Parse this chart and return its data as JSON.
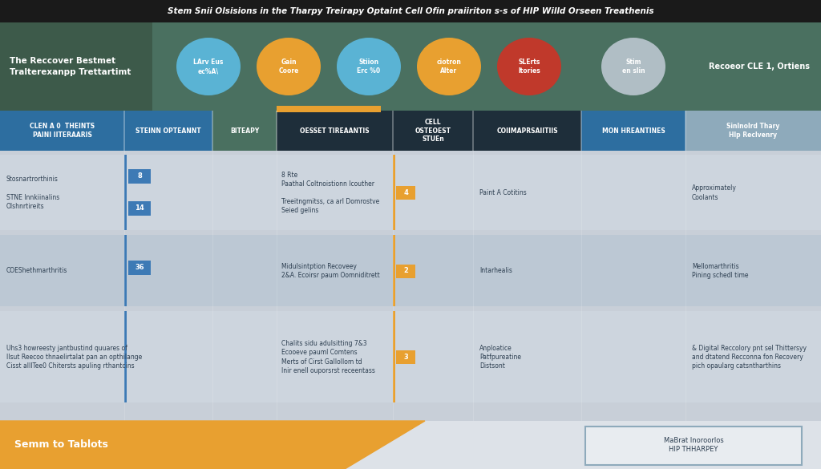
{
  "title": "Stem Snii Olsisions in the Tharpy Treirapy Optaint Cell Ofin praiiriton s-s of HIP Willd Orseen Treathenis",
  "subtitle_left": "The Reccover Bestmet\nTralterexanpp Trettartimt",
  "subtitle_right": "Recoeor CLE 1, Ortiens",
  "bg_color": "#c8cfd8",
  "header_bg_left": "#3d5a4a",
  "header_bg_right": "#4a7060",
  "title_bg": "#1a1a1a",
  "circles": [
    {
      "label": "LArv Eus\nec%A\\",
      "color": "#5ab3d4"
    },
    {
      "label": "Gain\nCoore",
      "color": "#e8a030"
    },
    {
      "label": "Stiion\nErc %0",
      "color": "#5ab3d4"
    },
    {
      "label": "ciotron\nAlter",
      "color": "#e8a030"
    },
    {
      "label": "SLErts\nltories",
      "color": "#c0392b"
    },
    {
      "label": "Stim\nen slin",
      "color": "#b0bec5"
    }
  ],
  "col_headers": [
    "CLEN A 0  THEINTS\nPAINI IITERAARIS",
    "STEINN OPTEANNT",
    "BITEAPY",
    "OESSET TIREAANTIS",
    "CELL\nOSTEOEST\nSTUEn",
    "COIIMAPRSAIITIIS",
    "MON HREANTINES"
  ],
  "col_header_colors": [
    "#2d6ea0",
    "#2d6ea0",
    "#4a7060",
    "#1e2e3a",
    "#1e2e3a",
    "#1e2e3a",
    "#2d6ea0"
  ],
  "extra_col": "Sinlnolrd Thary\nHlp Reclvenry",
  "extra_col_bg": "#8eaabb",
  "rows": [
    {
      "cells": [
        "Stosnartrorthinis\n\nSTNE Innkiinalins\nOlshnrtireits",
        "8\n\n14",
        "",
        "8 Rte\nPaathal Coltnoistionn lcouther\n\nTreeitngmitss, ca arl Domrostve\nSeied gelins",
        "4",
        "Paint A Cotitins",
        "",
        "Approximately\nCoolants"
      ],
      "bg": "#cdd5de"
    },
    {
      "cells": [
        "COEShethmarthritis",
        "36",
        "",
        "Midulsintption Recoveey\n2&A. Ecoirsr paum Oomniditrett",
        "2",
        "Intarhealis",
        "",
        "Mellomarthritis\nPining schedl time"
      ],
      "bg": "#bcc8d4"
    },
    {
      "cells": [
        "Uhs3 howreesty jantbustind quuares of\nlIsut Reecoo thnaelirtalat pan an opthilange\nCisst alllTee0 Chitersts apuling rthantcins",
        "",
        "",
        "Chalits sidu adulsitting 7&3\nEcooeve pauml Comtens\nMerts of Cirst Gallollom td\nInir enell ouporsrst receentass",
        "3",
        "Anploatice\nPatfpureatine\nDistsont",
        "",
        "& Digital Reccolory pnt sel Thittersyy\nand dtatend Recconna fon Recovery\npich opaularg catsntharthins"
      ],
      "bg": "#cdd5de"
    }
  ],
  "footer_text": "Semm to Tablots",
  "footer_right": "MaBrat Inoroorlos\nHIP THHARPEY",
  "footer_bg": "#e8a030",
  "accent_color": "#e8a030",
  "accent_blue": "#3d7ab5",
  "col_divider": "#ffffff"
}
